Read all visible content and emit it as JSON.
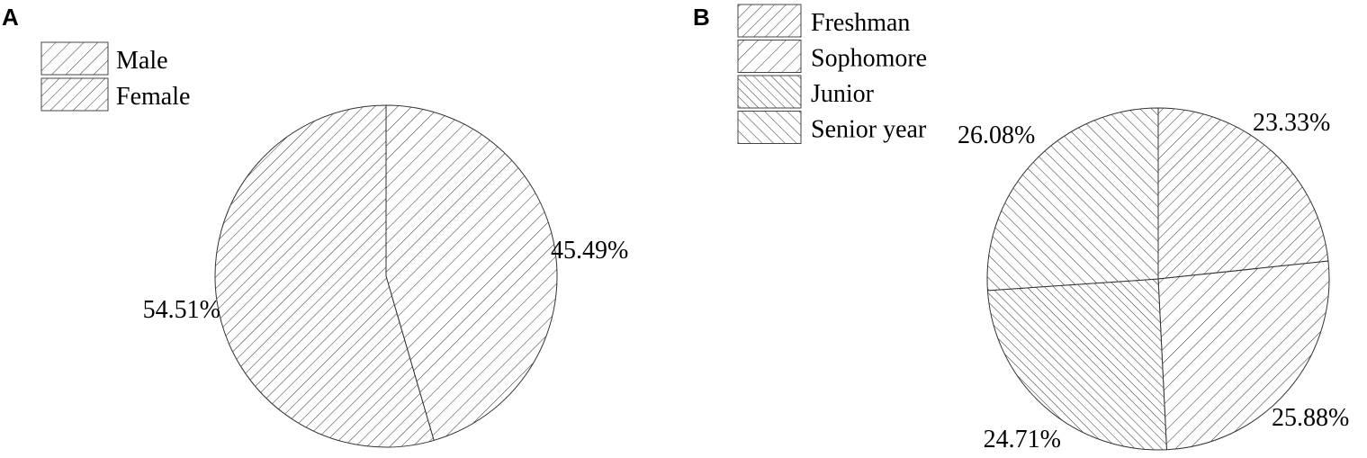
{
  "chart_data": [
    {
      "type": "pie",
      "panel": "A",
      "legend": {
        "entries": [
          "Male",
          "Female"
        ],
        "placement": "top-left"
      },
      "slices": [
        {
          "label": "Male",
          "value": 45.49,
          "display": "45.49%",
          "pattern": "hatch-fwd-sparse"
        },
        {
          "label": "Female",
          "value": 54.51,
          "display": "54.51%",
          "pattern": "hatch-fwd"
        }
      ]
    },
    {
      "type": "pie",
      "panel": "B",
      "legend": {
        "entries": [
          "Freshman",
          "Sophomore",
          "Junior",
          "Senior year"
        ],
        "placement": "top-left"
      },
      "slices": [
        {
          "label": "Freshman",
          "value": 23.33,
          "display": "23.33%",
          "pattern": "hatch-fwd"
        },
        {
          "label": "Sophomore",
          "value": 25.88,
          "display": "25.88%",
          "pattern": "hatch-fwd-sparse"
        },
        {
          "label": "Junior",
          "value": 24.71,
          "display": "24.71%",
          "pattern": "hatch-back"
        },
        {
          "label": "Senior year",
          "value": 26.08,
          "display": "26.08%",
          "pattern": "hatch-back-sparse"
        }
      ]
    }
  ]
}
